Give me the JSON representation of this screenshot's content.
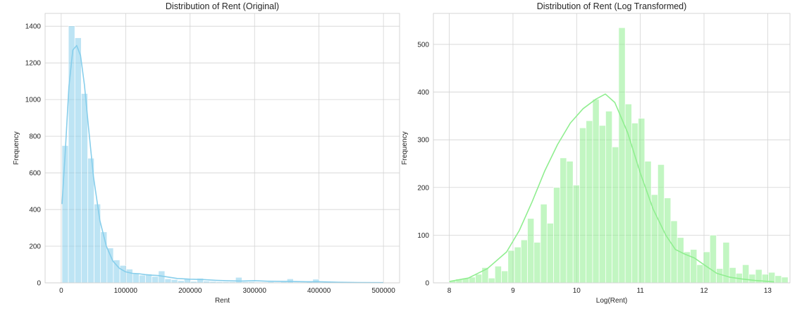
{
  "chart_data": [
    {
      "type": "bar",
      "title": "Distribution of Rent (Original)",
      "xlabel": "Rent",
      "ylabel": "Frequency",
      "xlim": [
        -25000,
        525000
      ],
      "ylim": [
        0,
        1470
      ],
      "xticks": [
        0,
        100000,
        200000,
        300000,
        400000,
        500000
      ],
      "yticks": [
        0,
        200,
        400,
        600,
        800,
        1000,
        1200,
        1400
      ],
      "grid": true,
      "color": "#87ceeb",
      "bin_start": 1200,
      "bin_width": 9976,
      "values": [
        749,
        1402,
        1337,
        1033,
        680,
        430,
        278,
        190,
        125,
        95,
        75,
        50,
        42,
        48,
        35,
        65,
        22,
        18,
        12,
        22,
        8,
        25,
        10,
        8,
        6,
        6,
        6,
        30,
        6,
        6,
        4,
        4,
        6,
        4,
        6,
        22,
        4,
        4,
        6,
        20,
        4,
        4,
        4,
        4,
        4,
        3,
        3,
        3,
        3,
        3
      ],
      "kde_x": [
        1200,
        6000,
        12000,
        18000,
        24000,
        30000,
        36000,
        42000,
        50000,
        60000,
        70000,
        80000,
        90000,
        100000,
        110000,
        120000,
        130000,
        140000,
        150000,
        165000,
        180000,
        200000,
        220000,
        240000,
        260000,
        280000,
        300000,
        320000,
        350000,
        380000,
        400000,
        430000,
        460000,
        500000
      ],
      "kde_y": [
        430,
        700,
        1070,
        1270,
        1295,
        1240,
        1080,
        860,
        580,
        340,
        200,
        120,
        80,
        60,
        52,
        50,
        45,
        42,
        40,
        32,
        24,
        20,
        18,
        14,
        11,
        10,
        12,
        9,
        8,
        6,
        6,
        3,
        2,
        1
      ]
    },
    {
      "type": "bar",
      "title": "Distribution of Rent (Log Transformed)",
      "xlabel": "Log(Rent)",
      "ylabel": "Frequency",
      "xlim": [
        7.75,
        13.35
      ],
      "ylim": [
        0,
        565
      ],
      "xticks": [
        8,
        9,
        10,
        11,
        12,
        13
      ],
      "yticks": [
        0,
        100,
        200,
        300,
        400,
        500
      ],
      "grid": true,
      "color": "#90ee90",
      "bin_start": 8.0,
      "bin_width": 0.1023,
      "values": [
        5,
        8,
        10,
        12,
        18,
        32,
        10,
        35,
        25,
        68,
        75,
        90,
        135,
        85,
        165,
        125,
        200,
        262,
        255,
        205,
        325,
        340,
        385,
        330,
        360,
        285,
        535,
        375,
        335,
        345,
        255,
        185,
        248,
        178,
        130,
        95,
        65,
        70,
        38,
        65,
        100,
        30,
        85,
        32,
        20,
        38,
        18,
        28,
        18,
        22,
        15,
        12
      ],
      "kde_x": [
        8.0,
        8.3,
        8.6,
        8.9,
        9.1,
        9.3,
        9.5,
        9.7,
        9.9,
        10.1,
        10.3,
        10.45,
        10.6,
        10.8,
        11.0,
        11.2,
        11.4,
        11.55,
        11.7,
        11.85,
        12.0,
        12.2,
        12.4,
        12.6,
        12.8,
        13.1
      ],
      "kde_y": [
        3,
        10,
        30,
        65,
        110,
        170,
        235,
        290,
        335,
        365,
        385,
        396,
        378,
        315,
        230,
        155,
        100,
        70,
        60,
        52,
        38,
        20,
        12,
        8,
        5,
        2
      ]
    }
  ]
}
